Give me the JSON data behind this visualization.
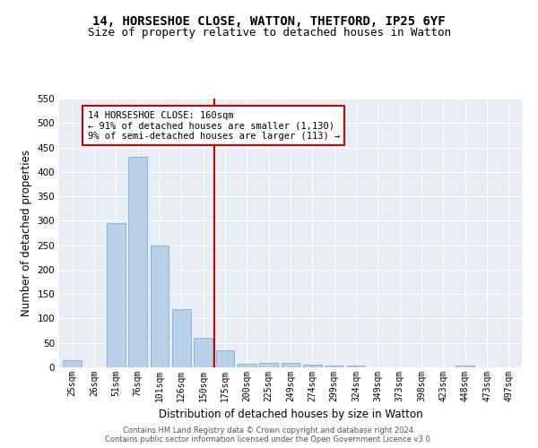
{
  "title1": "14, HORSESHOE CLOSE, WATTON, THETFORD, IP25 6YF",
  "title2": "Size of property relative to detached houses in Watton",
  "xlabel": "Distribution of detached houses by size in Watton",
  "ylabel": "Number of detached properties",
  "bar_labels": [
    "25sqm",
    "26sqm",
    "51sqm",
    "76sqm",
    "101sqm",
    "126sqm",
    "150sqm",
    "175sqm",
    "200sqm",
    "225sqm",
    "249sqm",
    "274sqm",
    "299sqm",
    "324sqm",
    "349sqm",
    "373sqm",
    "398sqm",
    "423sqm",
    "448sqm",
    "473sqm",
    "497sqm"
  ],
  "bar_heights": [
    15,
    0,
    295,
    430,
    250,
    120,
    60,
    35,
    8,
    10,
    10,
    5,
    4,
    4,
    0,
    0,
    0,
    0,
    4,
    0,
    0
  ],
  "bar_color": "#b8d0e8",
  "bar_edge_color": "#90b4d4",
  "vline_x": 6.5,
  "vline_color": "#cc0000",
  "annotation_text": "14 HORSESHOE CLOSE: 160sqm\n← 91% of detached houses are smaller (1,130)\n9% of semi-detached houses are larger (113) →",
  "annotation_box_color": "#ffffff",
  "annotation_box_edge": "#cc0000",
  "ylim": [
    0,
    550
  ],
  "yticks": [
    0,
    50,
    100,
    150,
    200,
    250,
    300,
    350,
    400,
    450,
    500,
    550
  ],
  "background_color": "#e8eef5",
  "footer_text": "Contains HM Land Registry data © Crown copyright and database right 2024.\nContains public sector information licensed under the Open Government Licence v3.0.",
  "title1_fontsize": 10,
  "title2_fontsize": 9,
  "xlabel_fontsize": 8.5,
  "ylabel_fontsize": 8.5,
  "annot_fontsize": 7.5,
  "tick_fontsize": 7.0,
  "ytick_fontsize": 7.5,
  "footer_fontsize": 6.0
}
